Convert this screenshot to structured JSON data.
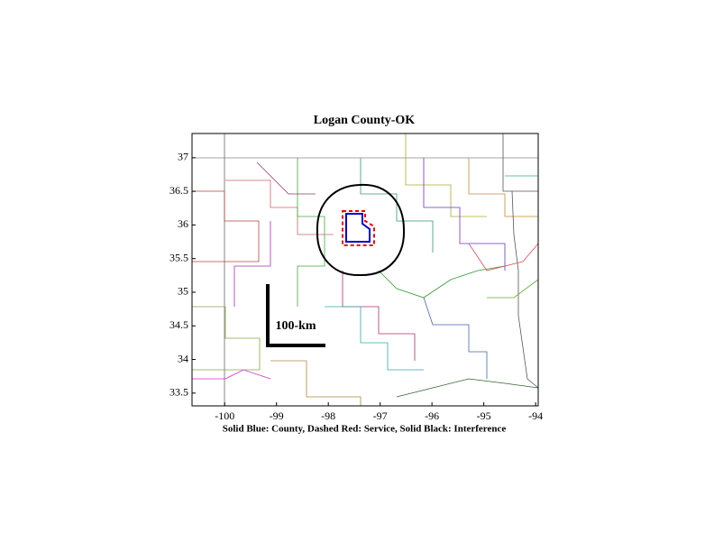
{
  "chart_data": {
    "type": "map",
    "title": "Logan County-OK",
    "x_label": "Solid Blue: County, Dashed Red: Service, Solid Black: Interference",
    "annotation": "100-km",
    "xlim": [
      -100.63,
      -93.95
    ],
    "ylim": [
      33.31,
      37.36
    ],
    "xticks": [
      -100,
      -99,
      -98,
      -97,
      -96,
      -95,
      -94
    ],
    "yticks": [
      33.5,
      34,
      34.5,
      35,
      35.5,
      36,
      36.5,
      37
    ]
  }
}
